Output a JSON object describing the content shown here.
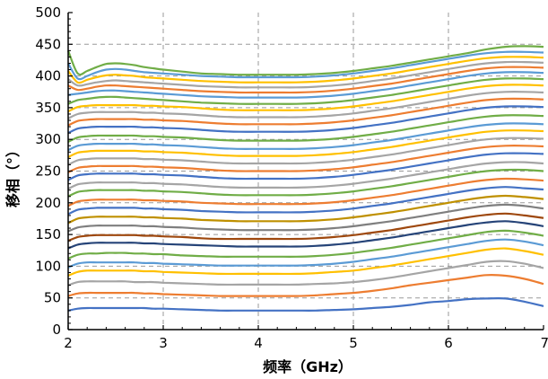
{
  "chart_data": {
    "type": "line",
    "title": "",
    "xlabel": "频率（GHz）",
    "ylabel": "移相（°）",
    "xlim": [
      2,
      7
    ],
    "ylim": [
      0,
      500
    ],
    "xticks": [
      "2",
      "3",
      "4",
      "5",
      "6",
      "7"
    ],
    "yticks": [
      "0",
      "50",
      "100",
      "150",
      "200",
      "250",
      "300",
      "350",
      "400",
      "450",
      "500"
    ],
    "grid": "dashed",
    "legend": "none",
    "x": [
      2.0,
      2.1,
      2.2,
      2.3,
      2.4,
      2.5,
      2.6,
      2.7,
      2.8,
      2.9,
      3.0,
      3.2,
      3.4,
      3.6,
      3.8,
      4.0,
      4.2,
      4.4,
      4.6,
      4.8,
      5.0,
      5.2,
      5.4,
      5.6,
      5.8,
      6.0,
      6.2,
      6.4,
      6.6,
      6.8,
      7.0
    ],
    "series": [
      {
        "color": "#4472c4",
        "values": [
          30,
          33,
          34,
          34,
          34,
          34,
          34,
          34,
          34,
          33,
          33,
          32,
          31,
          30,
          30,
          30,
          30,
          30,
          30,
          31,
          32,
          34,
          36,
          39,
          43,
          45,
          48,
          49,
          49,
          44,
          37
        ]
      },
      {
        "color": "#ed7d31",
        "values": [
          53,
          57,
          58,
          58,
          58,
          58,
          58,
          58,
          57,
          57,
          56,
          55,
          54,
          53,
          53,
          53,
          53,
          53,
          54,
          56,
          58,
          61,
          65,
          70,
          74,
          78,
          82,
          86,
          85,
          80,
          72
        ]
      },
      {
        "color": "#a5a5a5",
        "values": [
          70,
          75,
          76,
          76,
          76,
          76,
          76,
          75,
          75,
          75,
          74,
          73,
          72,
          71,
          71,
          71,
          71,
          71,
          72,
          73,
          75,
          78,
          82,
          87,
          92,
          97,
          102,
          107,
          108,
          104,
          97
        ]
      },
      {
        "color": "#ffc000",
        "values": [
          85,
          91,
          93,
          93,
          93,
          93,
          93,
          93,
          92,
          92,
          91,
          90,
          89,
          88,
          88,
          88,
          88,
          88,
          89,
          91,
          93,
          97,
          101,
          106,
          111,
          116,
          121,
          126,
          128,
          124,
          118
        ]
      },
      {
        "color": "#5b9bd5",
        "values": [
          98,
          104,
          106,
          106,
          106,
          106,
          106,
          106,
          105,
          105,
          104,
          103,
          102,
          101,
          101,
          101,
          101,
          101,
          102,
          104,
          107,
          111,
          115,
          120,
          125,
          130,
          135,
          140,
          142,
          139,
          133
        ]
      },
      {
        "color": "#70ad47",
        "values": [
          112,
          118,
          120,
          120,
          121,
          121,
          121,
          120,
          120,
          119,
          119,
          117,
          116,
          115,
          115,
          115,
          115,
          115,
          116,
          118,
          121,
          125,
          129,
          134,
          139,
          144,
          149,
          154,
          156,
          153,
          148
        ]
      },
      {
        "color": "#264478",
        "values": [
          128,
          134,
          136,
          137,
          137,
          137,
          137,
          137,
          136,
          136,
          135,
          134,
          133,
          132,
          131,
          131,
          131,
          131,
          132,
          134,
          137,
          141,
          145,
          150,
          155,
          160,
          165,
          169,
          171,
          168,
          163
        ]
      },
      {
        "color": "#9e480e",
        "values": [
          140,
          146,
          148,
          149,
          149,
          149,
          149,
          149,
          148,
          148,
          147,
          146,
          144,
          143,
          143,
          143,
          143,
          143,
          144,
          146,
          149,
          153,
          157,
          162,
          167,
          172,
          177,
          181,
          183,
          180,
          176
        ]
      },
      {
        "color": "#7f7f7f",
        "values": [
          155,
          161,
          163,
          164,
          164,
          164,
          164,
          164,
          163,
          163,
          162,
          161,
          159,
          158,
          157,
          157,
          157,
          157,
          158,
          160,
          163,
          167,
          171,
          176,
          181,
          186,
          191,
          195,
          197,
          195,
          191
        ]
      },
      {
        "color": "#bf9000",
        "values": [
          168,
          175,
          177,
          178,
          178,
          178,
          178,
          178,
          177,
          177,
          176,
          175,
          173,
          172,
          171,
          171,
          171,
          171,
          172,
          174,
          177,
          181,
          185,
          190,
          195,
          200,
          205,
          209,
          211,
          209,
          206
        ]
      },
      {
        "color": "#4472c4",
        "values": [
          182,
          189,
          191,
          192,
          192,
          192,
          192,
          192,
          191,
          191,
          190,
          189,
          187,
          186,
          185,
          185,
          185,
          185,
          186,
          188,
          191,
          195,
          199,
          204,
          209,
          214,
          219,
          223,
          225,
          223,
          221
        ]
      },
      {
        "color": "#ed7d31",
        "values": [
          195,
          202,
          204,
          205,
          205,
          205,
          205,
          205,
          204,
          204,
          203,
          202,
          200,
          199,
          198,
          198,
          198,
          198,
          199,
          201,
          204,
          208,
          212,
          217,
          222,
          227,
          232,
          236,
          238,
          237,
          235
        ]
      },
      {
        "color": "#70ad47",
        "values": [
          210,
          217,
          219,
          220,
          220,
          220,
          220,
          220,
          219,
          219,
          218,
          217,
          215,
          213,
          212,
          212,
          212,
          212,
          213,
          215,
          218,
          222,
          226,
          231,
          236,
          241,
          246,
          250,
          252,
          252,
          250
        ]
      },
      {
        "color": "#a5a5a5",
        "values": [
          222,
          229,
          231,
          232,
          232,
          232,
          232,
          232,
          231,
          231,
          230,
          229,
          227,
          225,
          224,
          224,
          224,
          224,
          225,
          227,
          230,
          234,
          238,
          243,
          248,
          253,
          258,
          262,
          264,
          264,
          262
        ]
      },
      {
        "color": "#4472c4",
        "values": [
          236,
          243,
          245,
          246,
          246,
          246,
          246,
          246,
          245,
          245,
          244,
          243,
          241,
          239,
          238,
          238,
          238,
          238,
          239,
          241,
          244,
          248,
          252,
          257,
          262,
          267,
          272,
          276,
          278,
          278,
          277
        ]
      },
      {
        "color": "#ed7d31",
        "values": [
          248,
          255,
          257,
          258,
          258,
          258,
          258,
          258,
          257,
          257,
          256,
          255,
          253,
          251,
          250,
          250,
          250,
          250,
          251,
          253,
          256,
          260,
          264,
          269,
          274,
          279,
          284,
          288,
          290,
          290,
          289
        ]
      },
      {
        "color": "#a5a5a5",
        "values": [
          260,
          267,
          269,
          270,
          270,
          270,
          270,
          270,
          269,
          269,
          268,
          267,
          265,
          263,
          262,
          262,
          262,
          262,
          263,
          265,
          268,
          272,
          276,
          281,
          286,
          291,
          296,
          300,
          302,
          302,
          301
        ]
      },
      {
        "color": "#ffc000",
        "values": [
          272,
          279,
          281,
          282,
          282,
          282,
          282,
          282,
          281,
          281,
          280,
          279,
          277,
          275,
          274,
          274,
          274,
          274,
          275,
          277,
          280,
          284,
          288,
          293,
          298,
          303,
          308,
          312,
          314,
          314,
          313
        ]
      },
      {
        "color": "#5b9bd5",
        "values": [
          283,
          290,
          292,
          293,
          293,
          293,
          293,
          293,
          292,
          292,
          291,
          290,
          288,
          286,
          285,
          285,
          285,
          285,
          286,
          288,
          291,
          295,
          299,
          304,
          309,
          314,
          319,
          323,
          325,
          325,
          324
        ]
      },
      {
        "color": "#70ad47",
        "values": [
          296,
          303,
          305,
          306,
          306,
          306,
          306,
          306,
          305,
          305,
          304,
          303,
          301,
          299,
          298,
          298,
          298,
          298,
          299,
          301,
          304,
          308,
          312,
          317,
          322,
          327,
          332,
          336,
          338,
          338,
          337
        ]
      },
      {
        "color": "#4472c4",
        "values": [
          310,
          317,
          319,
          320,
          320,
          320,
          320,
          320,
          319,
          319,
          318,
          317,
          315,
          313,
          312,
          312,
          312,
          312,
          313,
          315,
          318,
          322,
          326,
          331,
          336,
          341,
          346,
          350,
          352,
          352,
          351
        ]
      },
      {
        "color": "#ed7d31",
        "values": [
          322,
          329,
          331,
          332,
          332,
          332,
          332,
          332,
          331,
          331,
          330,
          329,
          327,
          325,
          324,
          324,
          324,
          324,
          325,
          327,
          330,
          334,
          338,
          343,
          348,
          353,
          358,
          362,
          364,
          364,
          363
        ]
      },
      {
        "color": "#a5a5a5",
        "values": [
          333,
          340,
          342,
          343,
          343,
          343,
          343,
          343,
          342,
          342,
          341,
          340,
          338,
          336,
          335,
          335,
          335,
          335,
          336,
          338,
          341,
          345,
          349,
          354,
          359,
          364,
          369,
          373,
          375,
          375,
          374
        ]
      },
      {
        "color": "#ffc000",
        "values": [
          344,
          351,
          353,
          354,
          354,
          354,
          354,
          354,
          353,
          353,
          352,
          351,
          349,
          347,
          346,
          346,
          346,
          346,
          347,
          349,
          352,
          356,
          360,
          365,
          370,
          375,
          380,
          384,
          386,
          386,
          385
        ]
      },
      {
        "color": "#70ad47",
        "values": [
          356,
          362,
          364,
          366,
          367,
          367,
          366,
          365,
          364,
          363,
          362,
          360,
          358,
          357,
          356,
          356,
          356,
          356,
          357,
          359,
          362,
          366,
          370,
          375,
          380,
          385,
          390,
          394,
          396,
          396,
          395
        ]
      },
      {
        "color": "#5b9bd5",
        "values": [
          370,
          372,
          374,
          376,
          377,
          377,
          376,
          375,
          374,
          373,
          372,
          370,
          368,
          367,
          366,
          366,
          366,
          366,
          367,
          369,
          372,
          376,
          380,
          385,
          390,
          395,
          400,
          404,
          406,
          406,
          405
        ]
      },
      {
        "color": "#ed7d31",
        "values": [
          385,
          378,
          380,
          383,
          385,
          385,
          384,
          383,
          382,
          381,
          380,
          378,
          376,
          375,
          374,
          374,
          374,
          374,
          375,
          377,
          380,
          384,
          388,
          393,
          398,
          403,
          408,
          412,
          414,
          414,
          413
        ]
      },
      {
        "color": "#a5a5a5",
        "values": [
          395,
          385,
          387,
          390,
          392,
          393,
          392,
          391,
          390,
          389,
          388,
          386,
          384,
          383,
          382,
          382,
          382,
          382,
          383,
          385,
          388,
          392,
          396,
          401,
          406,
          411,
          416,
          420,
          422,
          422,
          421
        ]
      },
      {
        "color": "#ffc000",
        "values": [
          408,
          390,
          394,
          398,
          401,
          402,
          401,
          400,
          398,
          397,
          396,
          394,
          392,
          391,
          390,
          390,
          390,
          390,
          391,
          393,
          396,
          400,
          404,
          409,
          414,
          419,
          424,
          428,
          430,
          430,
          429
        ]
      },
      {
        "color": "#5b9bd5",
        "values": [
          420,
          396,
          400,
          406,
          410,
          411,
          410,
          408,
          406,
          405,
          404,
          402,
          400,
          399,
          398,
          398,
          398,
          398,
          399,
          401,
          404,
          408,
          412,
          417,
          422,
          427,
          432,
          436,
          438,
          438,
          437
        ]
      },
      {
        "color": "#70ad47",
        "values": [
          440,
          404,
          408,
          414,
          419,
          420,
          419,
          417,
          414,
          412,
          410,
          407,
          404,
          403,
          402,
          402,
          402,
          402,
          403,
          405,
          408,
          412,
          416,
          421,
          426,
          431,
          436,
          442,
          446,
          447,
          446
        ]
      }
    ]
  }
}
